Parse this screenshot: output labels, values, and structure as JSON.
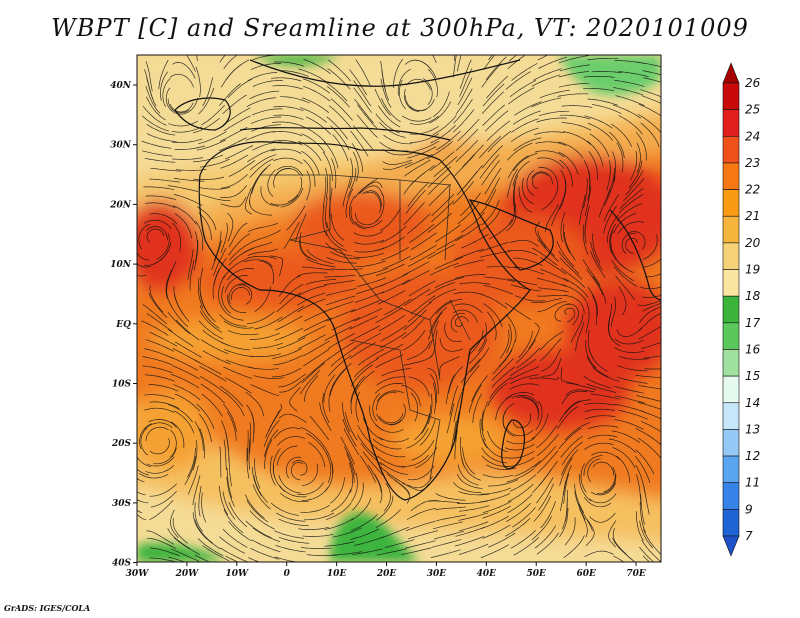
{
  "title": "WBPT [C] and Sreamline at 300hPa, VT: 2020101009",
  "credit": "GrADS: IGES/COLA",
  "lon_labels": [
    "30W",
    "20W",
    "10W",
    "0",
    "10E",
    "20E",
    "30E",
    "40E",
    "50E",
    "60E",
    "70E"
  ],
  "lat_labels": [
    "40N",
    "30N",
    "20N",
    "10N",
    "EQ",
    "10S",
    "20S",
    "30S",
    "40S"
  ],
  "colorbar": {
    "labels": [
      "26",
      "25",
      "24",
      "23",
      "22",
      "21",
      "20",
      "19",
      "18",
      "17",
      "16",
      "15",
      "14",
      "13",
      "12",
      "11",
      "9",
      "7"
    ],
    "colors": [
      "#a50000",
      "#c80a0a",
      "#e01e1e",
      "#f0501a",
      "#f57814",
      "#fa9b14",
      "#f5b43c",
      "#f5d278",
      "#fae6a0",
      "#3cb43c",
      "#5ac85a",
      "#a0e1a0",
      "#e6faf0",
      "#c8e6fa",
      "#96c8f5",
      "#5aa5f0",
      "#3782e6",
      "#1e64d2",
      "#1e50c8"
    ]
  },
  "map": {
    "lon_range": [
      -30,
      75
    ],
    "lat_range": [
      -40,
      45
    ],
    "field_colors": {
      "dark_red": "#e0301a",
      "red_orange": "#eb5a1a",
      "orange": "#f07a20",
      "light_orange": "#f5a030",
      "pale_orange": "#f5c060",
      "pale_yellow": "#f5dc96",
      "green": "#3cb43c",
      "light_green": "#6ccd6c"
    }
  }
}
